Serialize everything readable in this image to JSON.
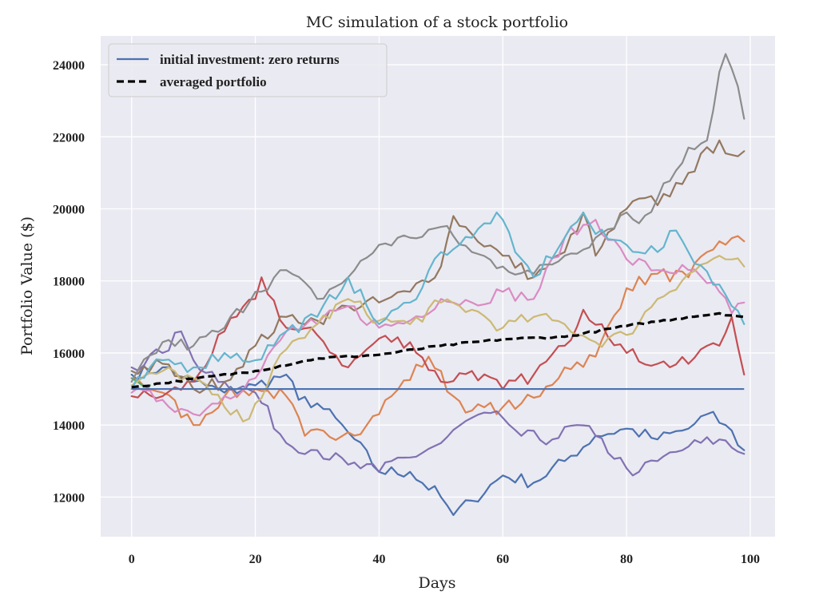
{
  "chart_data": {
    "type": "line",
    "title": "MC simulation of a stock portfolio",
    "xlabel": "Days",
    "ylabel": "Portfolio Value ($)",
    "xlim": [
      -5,
      104
    ],
    "ylim": [
      10900,
      24800
    ],
    "x_ticks": [
      0,
      20,
      40,
      60,
      80,
      100
    ],
    "y_ticks": [
      12000,
      14000,
      16000,
      18000,
      20000,
      22000,
      24000
    ],
    "grid": true,
    "legend_position": "top-left",
    "background_color": "#eaeaf2",
    "legend": [
      {
        "label": "initial investment: zero returns",
        "color": "#4c72b0",
        "style": "solid"
      },
      {
        "label": "averaged portfolio",
        "color": "#000000",
        "style": "dashed"
      }
    ],
    "reference_line": {
      "name": "initial investment: zero returns",
      "value": 15000,
      "color": "#4c72b0",
      "x_start": 0,
      "x_end": 99
    },
    "average_series": {
      "name": "averaged portfolio",
      "color": "#000000",
      "knots": [
        [
          0,
          15050
        ],
        [
          10,
          15280
        ],
        [
          20,
          15500
        ],
        [
          30,
          15850
        ],
        [
          40,
          15950
        ],
        [
          50,
          16200
        ],
        [
          60,
          16380
        ],
        [
          70,
          16450
        ],
        [
          80,
          16750
        ],
        [
          90,
          17000
        ],
        [
          95,
          17100
        ],
        [
          99,
          17000
        ]
      ]
    },
    "simulated_series": [
      {
        "color": "#4c72b0",
        "knots": [
          [
            0,
            15400
          ],
          [
            5,
            15600
          ],
          [
            10,
            15200
          ],
          [
            15,
            14900
          ],
          [
            20,
            15100
          ],
          [
            25,
            15400
          ],
          [
            27,
            14700
          ],
          [
            30,
            14600
          ],
          [
            35,
            13800
          ],
          [
            40,
            12700
          ],
          [
            45,
            12700
          ],
          [
            50,
            12000
          ],
          [
            52,
            11500
          ],
          [
            55,
            11900
          ],
          [
            60,
            12600
          ],
          [
            65,
            12400
          ],
          [
            70,
            13000
          ],
          [
            75,
            13700
          ],
          [
            80,
            13900
          ],
          [
            85,
            13600
          ],
          [
            90,
            13900
          ],
          [
            93,
            14300
          ],
          [
            96,
            14000
          ],
          [
            99,
            13300
          ]
        ]
      },
      {
        "color": "#dd8452",
        "knots": [
          [
            0,
            15300
          ],
          [
            5,
            14900
          ],
          [
            10,
            14000
          ],
          [
            15,
            14800
          ],
          [
            20,
            15000
          ],
          [
            25,
            14800
          ],
          [
            28,
            13700
          ],
          [
            35,
            13800
          ],
          [
            38,
            14000
          ],
          [
            42,
            14800
          ],
          [
            48,
            15900
          ],
          [
            52,
            14800
          ],
          [
            55,
            14400
          ],
          [
            60,
            14500
          ],
          [
            63,
            14600
          ],
          [
            66,
            14800
          ],
          [
            70,
            15600
          ],
          [
            75,
            15900
          ],
          [
            80,
            17800
          ],
          [
            85,
            18200
          ],
          [
            90,
            18100
          ],
          [
            95,
            19100
          ],
          [
            99,
            19100
          ]
        ]
      },
      {
        "color": "#55a868",
        "knots": [
          [
            0,
            15300
          ],
          [
            3,
            15100
          ]
        ]
      },
      {
        "color": "#c44e52",
        "knots": [
          [
            0,
            14800
          ],
          [
            5,
            14800
          ],
          [
            10,
            15200
          ],
          [
            15,
            16600
          ],
          [
            20,
            17500
          ],
          [
            21,
            18100
          ],
          [
            25,
            16700
          ],
          [
            30,
            16500
          ],
          [
            35,
            15600
          ],
          [
            40,
            16400
          ],
          [
            45,
            16300
          ],
          [
            50,
            15200
          ],
          [
            55,
            15500
          ],
          [
            60,
            15000
          ],
          [
            65,
            15400
          ],
          [
            70,
            16200
          ],
          [
            73,
            17200
          ],
          [
            76,
            16800
          ],
          [
            80,
            16000
          ],
          [
            85,
            15700
          ],
          [
            90,
            15700
          ],
          [
            92,
            16100
          ],
          [
            95,
            16200
          ],
          [
            97,
            17000
          ],
          [
            99,
            15400
          ]
        ]
      },
      {
        "color": "#8172b3",
        "knots": [
          [
            0,
            15600
          ],
          [
            5,
            16000
          ],
          [
            8,
            16600
          ],
          [
            10,
            15800
          ],
          [
            15,
            15200
          ],
          [
            20,
            14900
          ],
          [
            25,
            13500
          ],
          [
            30,
            13300
          ],
          [
            35,
            12900
          ],
          [
            40,
            12700
          ],
          [
            42,
            13000
          ],
          [
            45,
            13100
          ],
          [
            50,
            13500
          ],
          [
            55,
            14200
          ],
          [
            60,
            14200
          ],
          [
            63,
            13700
          ],
          [
            68,
            13600
          ],
          [
            72,
            14000
          ],
          [
            75,
            13700
          ],
          [
            80,
            12800
          ],
          [
            82,
            12700
          ],
          [
            85,
            13000
          ],
          [
            90,
            13400
          ],
          [
            95,
            13600
          ],
          [
            99,
            13200
          ]
        ]
      },
      {
        "color": "#937860",
        "knots": [
          [
            0,
            15500
          ],
          [
            5,
            15700
          ],
          [
            10,
            15000
          ],
          [
            15,
            15200
          ],
          [
            20,
            16200
          ],
          [
            25,
            17000
          ],
          [
            30,
            16900
          ],
          [
            35,
            17300
          ],
          [
            40,
            17400
          ],
          [
            45,
            17700
          ],
          [
            50,
            18400
          ],
          [
            52,
            19800
          ],
          [
            55,
            19300
          ],
          [
            60,
            18700
          ],
          [
            65,
            18100
          ],
          [
            70,
            18800
          ],
          [
            73,
            19900
          ],
          [
            75,
            18700
          ],
          [
            80,
            20000
          ],
          [
            83,
            20300
          ],
          [
            85,
            20100
          ],
          [
            90,
            21000
          ],
          [
            95,
            21900
          ],
          [
            97,
            21500
          ],
          [
            99,
            21600
          ]
        ]
      },
      {
        "color": "#da8bc3",
        "knots": [
          [
            0,
            14900
          ],
          [
            5,
            14700
          ],
          [
            10,
            14300
          ],
          [
            15,
            14800
          ],
          [
            20,
            15300
          ],
          [
            25,
            16600
          ],
          [
            30,
            16800
          ],
          [
            35,
            17300
          ],
          [
            40,
            16700
          ],
          [
            45,
            16900
          ],
          [
            50,
            17500
          ],
          [
            55,
            17400
          ],
          [
            60,
            17700
          ],
          [
            65,
            17500
          ],
          [
            70,
            19200
          ],
          [
            75,
            19700
          ],
          [
            80,
            18600
          ],
          [
            85,
            18300
          ],
          [
            90,
            18300
          ],
          [
            95,
            17700
          ],
          [
            97,
            17100
          ],
          [
            99,
            17400
          ]
        ]
      },
      {
        "color": "#8c8c8c",
        "knots": [
          [
            0,
            15200
          ],
          [
            5,
            16300
          ],
          [
            10,
            16200
          ],
          [
            15,
            16700
          ],
          [
            20,
            17700
          ],
          [
            25,
            18300
          ],
          [
            30,
            17500
          ],
          [
            35,
            18100
          ],
          [
            40,
            19000
          ],
          [
            45,
            19200
          ],
          [
            50,
            19500
          ],
          [
            55,
            18800
          ],
          [
            60,
            18400
          ],
          [
            65,
            18200
          ],
          [
            70,
            18700
          ],
          [
            75,
            19200
          ],
          [
            80,
            19900
          ],
          [
            82,
            19600
          ],
          [
            85,
            20300
          ],
          [
            90,
            21700
          ],
          [
            93,
            21900
          ],
          [
            95,
            23800
          ],
          [
            96,
            24300
          ],
          [
            98,
            23400
          ],
          [
            99,
            22500
          ]
        ]
      },
      {
        "color": "#ccb974",
        "knots": [
          [
            0,
            15100
          ],
          [
            5,
            15500
          ],
          [
            10,
            15300
          ],
          [
            15,
            14500
          ],
          [
            18,
            14100
          ],
          [
            20,
            14600
          ],
          [
            25,
            16100
          ],
          [
            30,
            16800
          ],
          [
            35,
            17500
          ],
          [
            40,
            16900
          ],
          [
            45,
            16800
          ],
          [
            50,
            17400
          ],
          [
            55,
            17200
          ],
          [
            60,
            16700
          ],
          [
            65,
            17000
          ],
          [
            70,
            16800
          ],
          [
            75,
            16300
          ],
          [
            80,
            16500
          ],
          [
            85,
            17500
          ],
          [
            90,
            18200
          ],
          [
            95,
            18700
          ],
          [
            99,
            18400
          ]
        ]
      },
      {
        "color": "#64b5cd",
        "knots": [
          [
            0,
            15000
          ],
          [
            5,
            15800
          ],
          [
            10,
            15600
          ],
          [
            15,
            16000
          ],
          [
            20,
            15800
          ],
          [
            25,
            16600
          ],
          [
            30,
            17000
          ],
          [
            35,
            18100
          ],
          [
            40,
            16800
          ],
          [
            45,
            17400
          ],
          [
            50,
            18800
          ],
          [
            55,
            19200
          ],
          [
            59,
            19900
          ],
          [
            62,
            18800
          ],
          [
            65,
            18100
          ],
          [
            70,
            19200
          ],
          [
            73,
            19900
          ],
          [
            75,
            19300
          ],
          [
            80,
            19000
          ],
          [
            85,
            18800
          ],
          [
            88,
            19400
          ],
          [
            90,
            18800
          ],
          [
            95,
            17900
          ],
          [
            97,
            17300
          ],
          [
            99,
            16800
          ]
        ]
      }
    ]
  }
}
